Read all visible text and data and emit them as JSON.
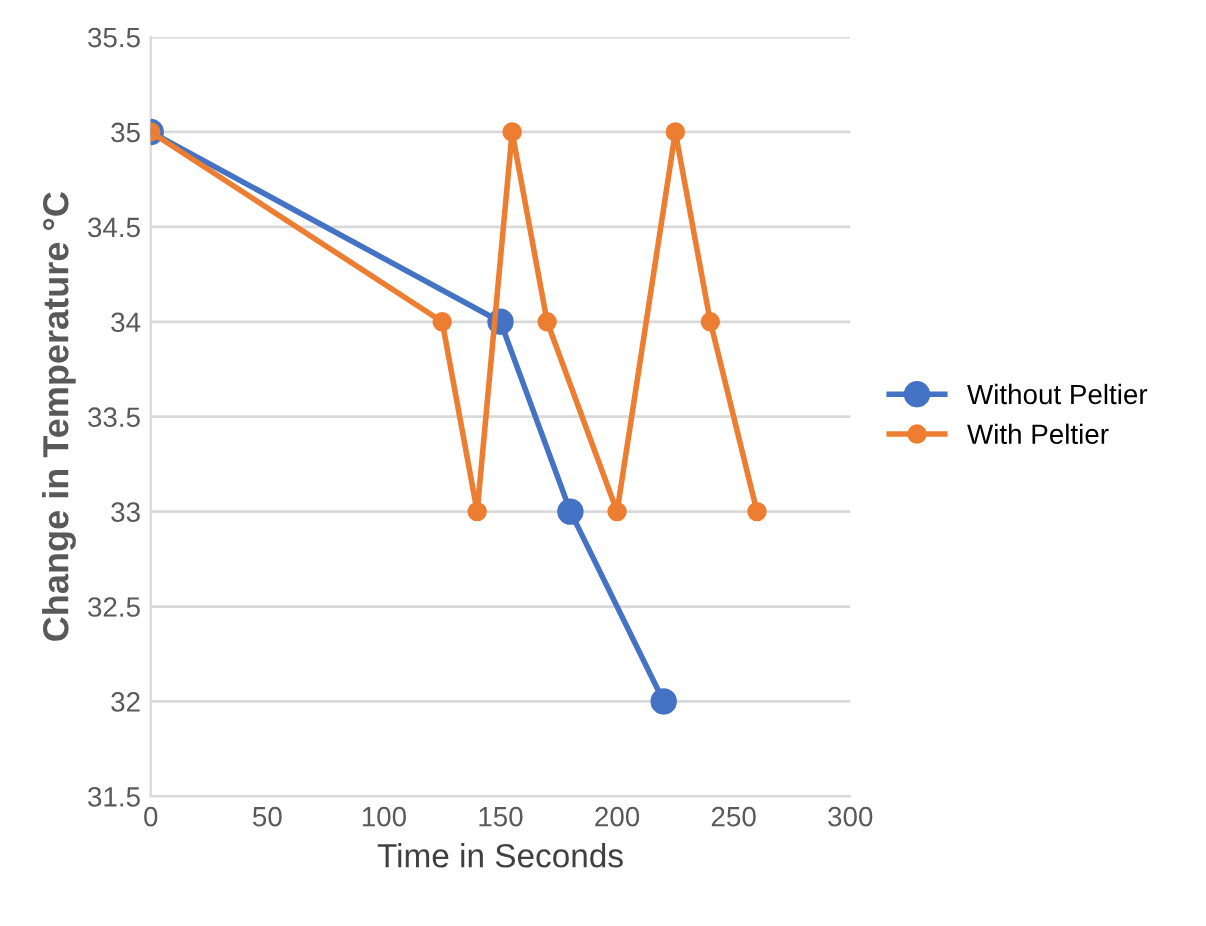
{
  "chart_data": {
    "type": "line",
    "xlabel": "Time in Seconds",
    "ylabel": "Change in Temperature °C",
    "series": [
      {
        "name": "Without Peltier",
        "color": "#4472c4",
        "x": [
          0,
          150,
          180,
          220
        ],
        "values": [
          35,
          34,
          33,
          32
        ]
      },
      {
        "name": "With Peltier",
        "color": "#ed7d31",
        "x": [
          0,
          125,
          140,
          155,
          170,
          200,
          225,
          240,
          260
        ],
        "values": [
          35,
          34,
          33,
          35,
          34,
          33,
          35,
          34,
          33
        ]
      }
    ],
    "xlim": [
      0,
      300
    ],
    "xticks": [
      0,
      50,
      100,
      150,
      200,
      250,
      300
    ],
    "ylim": [
      31.5,
      35.5
    ],
    "yticks": [
      31.5,
      32,
      32.5,
      33,
      33.5,
      34,
      34.5,
      35,
      35.5
    ],
    "grid": "y",
    "legend": "right",
    "marker": "circle",
    "line_style": "solid"
  }
}
